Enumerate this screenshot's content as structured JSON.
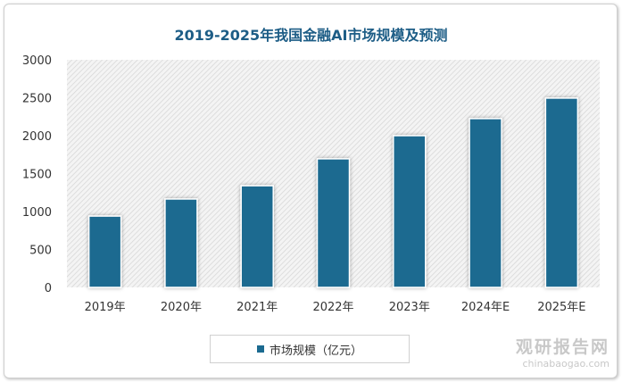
{
  "chart_data": {
    "type": "bar",
    "title": "2019-2025年我国金融AI市场规模及预测",
    "categories": [
      "2019年",
      "2020年",
      "2021年",
      "2022年",
      "2023年",
      "2024年E",
      "2025年E"
    ],
    "series": [
      {
        "name": "市场规模（亿元）",
        "values": [
          940,
          1165,
          1340,
          1695,
          2000,
          2225,
          2495
        ],
        "color": "#1b6a90"
      }
    ],
    "yticks": [
      "0",
      "500",
      "1000",
      "1500",
      "2000",
      "2500",
      "3000"
    ],
    "ylim": [
      0,
      3000
    ],
    "grid": false,
    "legend": "bottom"
  },
  "watermark": {
    "name": "观研报告网",
    "url": "chinabaogao.com"
  }
}
